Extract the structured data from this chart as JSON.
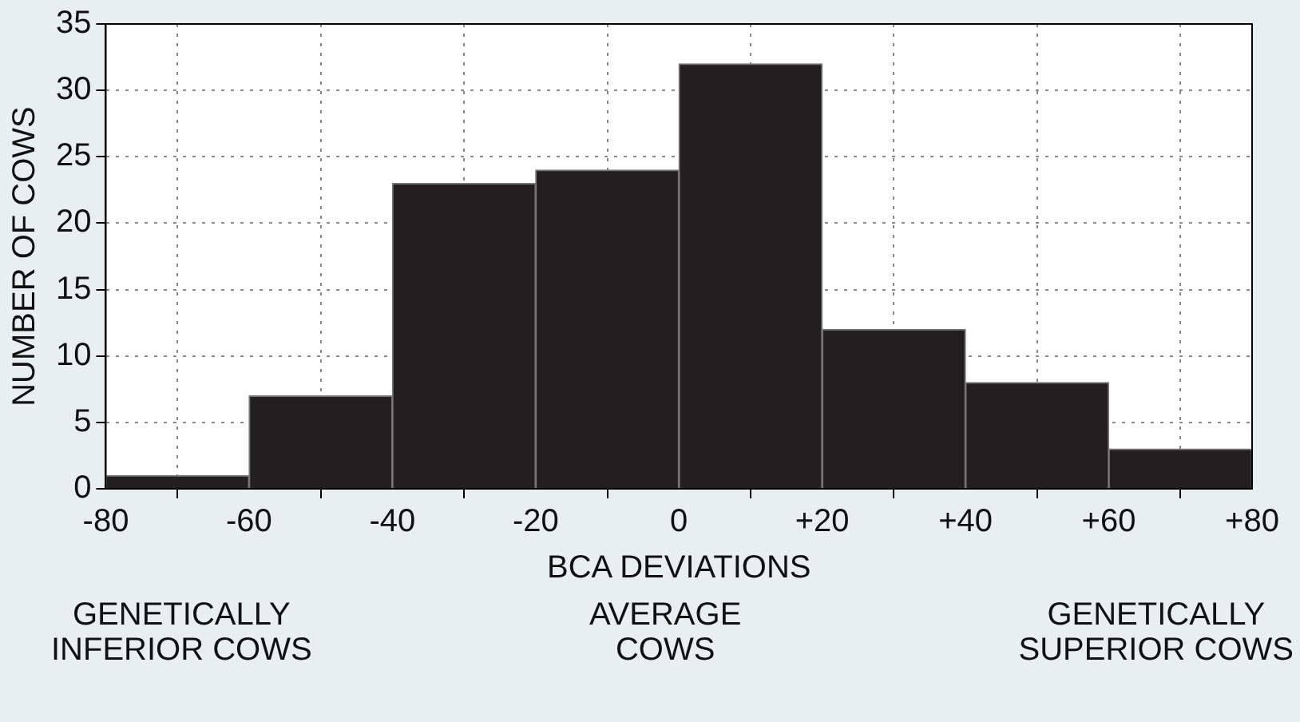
{
  "chart_data": {
    "type": "histogram",
    "xlabel": "BCA DEVIATIONS",
    "ylabel": "NUMBER OF COWS",
    "bins": [
      -80,
      -60,
      -40,
      -20,
      0,
      20,
      40,
      60,
      80
    ],
    "values": [
      1,
      7,
      23,
      24,
      32,
      12,
      8,
      3
    ],
    "color": "#231f20",
    "xlim": [
      -80,
      80
    ],
    "xticks": [
      -80,
      -60,
      -40,
      -20,
      0,
      {
        "value": 20,
        "label": "+20"
      },
      {
        "value": 40,
        "label": "+40"
      },
      {
        "value": 60,
        "label": "+60"
      },
      {
        "value": 80,
        "label": "+80"
      }
    ],
    "ylim": [
      0,
      35
    ],
    "yticks": [
      0,
      5,
      10,
      15,
      20,
      25,
      30,
      35
    ],
    "grid": true,
    "legend": false,
    "annotations": [
      "GENETICALLY\nINFERIOR COWS",
      "AVERAGE\nCOWS",
      "GENETICALLY\nSUPERIOR COWS"
    ]
  }
}
